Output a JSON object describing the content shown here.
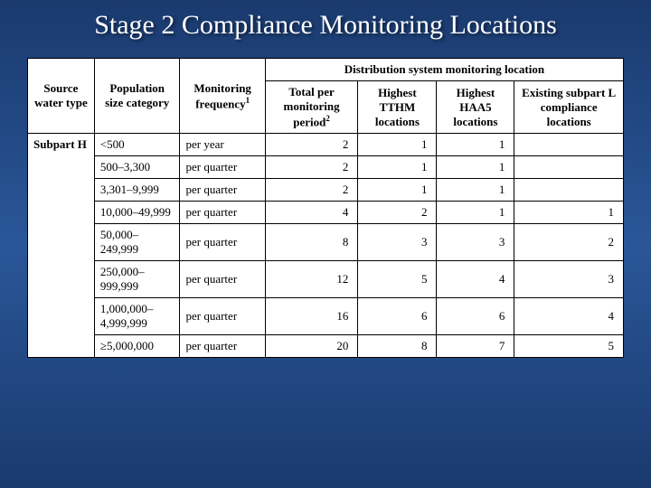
{
  "title": "Stage 2 Compliance Monitoring Locations",
  "table": {
    "spanning_header": "Distribution system monitoring location",
    "columns": {
      "source": "Source water type",
      "population": "Population size category",
      "frequency_html": "Monitoring frequency<sup>1</sup>",
      "total_html": "Total per monitoring period<sup>2</sup>",
      "tthm": "Highest TTHM locations",
      "haa5": "Highest HAA5 locations",
      "existing": "Existing subpart L compliance locations"
    },
    "subpart_label": "Subpart H",
    "rows": [
      {
        "category": "<500",
        "frequency": "per year",
        "total": 2,
        "tthm": 1,
        "haa5": 1,
        "existing": ""
      },
      {
        "category": "500–3,300",
        "frequency": "per quarter",
        "total": 2,
        "tthm": 1,
        "haa5": 1,
        "existing": ""
      },
      {
        "category": "3,301–9,999",
        "frequency": "per quarter",
        "total": 2,
        "tthm": 1,
        "haa5": 1,
        "existing": ""
      },
      {
        "category": "10,000–49,999",
        "frequency": "per quarter",
        "total": 4,
        "tthm": 2,
        "haa5": 1,
        "existing": 1
      },
      {
        "category": "50,000–249,999",
        "frequency": "per quarter",
        "total": 8,
        "tthm": 3,
        "haa5": 3,
        "existing": 2
      },
      {
        "category": "250,000–999,999",
        "frequency": "per quarter",
        "total": 12,
        "tthm": 5,
        "haa5": 4,
        "existing": 3
      },
      {
        "category": "1,000,000–4,999,999",
        "frequency": "per quarter",
        "total": 16,
        "tthm": 6,
        "haa5": 6,
        "existing": 4
      },
      {
        "category": "≥5,000,000",
        "frequency": "per quarter",
        "total": 20,
        "tthm": 8,
        "haa5": 7,
        "existing": 5
      }
    ]
  },
  "style": {
    "bg_gradient_top": "#1a3a6e",
    "bg_gradient_mid": "#2a5698",
    "title_color": "#ffffff",
    "table_bg": "#ffffff",
    "border_color": "#000000",
    "title_fontsize": 30,
    "header_fontsize": 13,
    "cell_fontsize": 13
  }
}
